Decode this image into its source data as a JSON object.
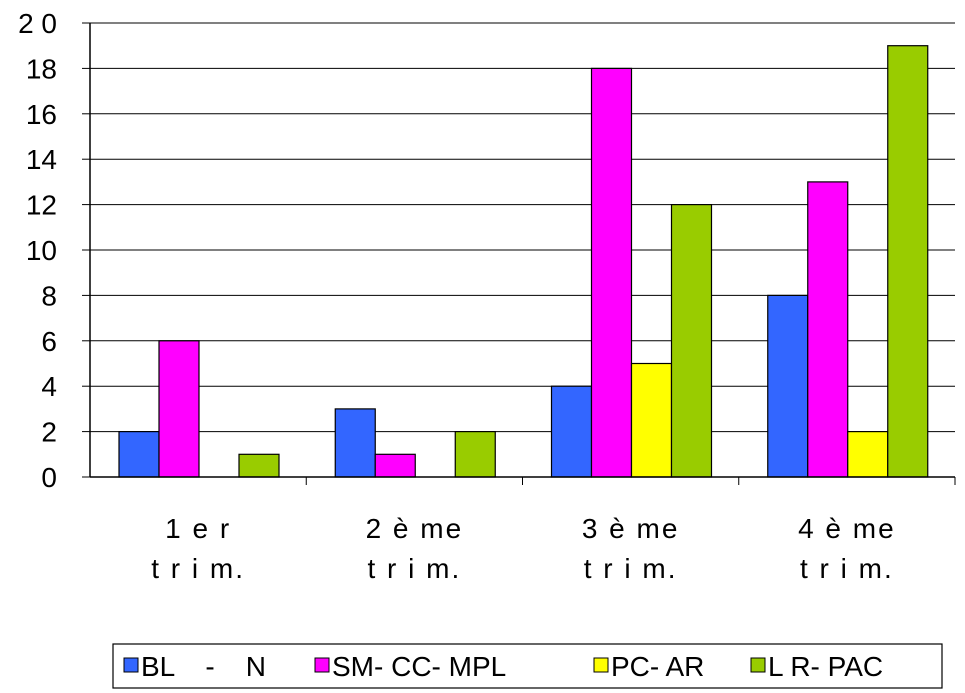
{
  "chart_data": {
    "type": "bar",
    "categories": [
      [
        "1 e r",
        "t r i m."
      ],
      [
        "2 è me",
        "t r i m."
      ],
      [
        "3 è me",
        "t r i m."
      ],
      [
        "4 è me",
        "t r i m."
      ]
    ],
    "series": [
      {
        "name": "BL    -    N",
        "color": "#3366ff",
        "values": [
          2,
          3,
          4,
          8
        ]
      },
      {
        "name": "SM- CC- MPL",
        "color": "#ff00ff",
        "values": [
          6,
          1,
          18,
          13
        ]
      },
      {
        "name": "PC- AR",
        "color": "#ffff00",
        "values": [
          0,
          0,
          5,
          2
        ]
      },
      {
        "name": "L R- PAC",
        "color": "#99cc00",
        "values": [
          1,
          2,
          12,
          19
        ]
      }
    ],
    "ylim": [
      0,
      20
    ],
    "yticks": [
      "0",
      "2",
      "4",
      "6",
      "8",
      "10",
      "12",
      "14",
      "16",
      "18",
      "2 0"
    ],
    "grid": true,
    "legend": "bottom"
  }
}
